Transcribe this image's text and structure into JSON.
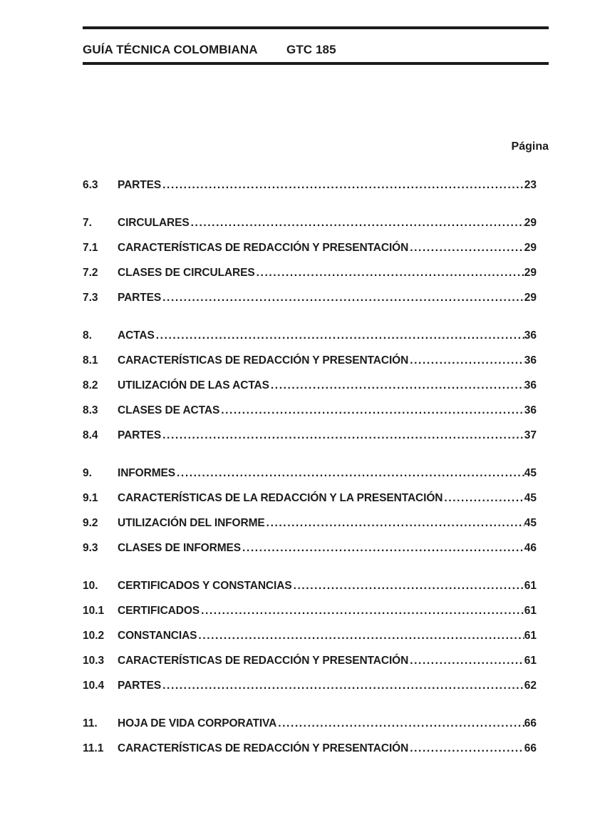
{
  "header": {
    "left_title": "GUÍA TÉCNICA COLOMBIANA",
    "doc_code": "GTC 185"
  },
  "page_label": "Página",
  "toc": {
    "leader_char": ".",
    "groups": [
      {
        "entries": [
          {
            "num": "6.3",
            "title": "PARTES",
            "page": "23"
          }
        ]
      },
      {
        "entries": [
          {
            "num": "7.",
            "title": "CIRCULARES",
            "page": "29"
          },
          {
            "num": "7.1",
            "title": "CARACTERÍSTICAS DE REDACCIÓN Y PRESENTACIÓN",
            "page": "29"
          },
          {
            "num": "7.2",
            "title": "CLASES DE CIRCULARES",
            "page": "29"
          },
          {
            "num": "7.3",
            "title": "PARTES",
            "page": "29"
          }
        ]
      },
      {
        "entries": [
          {
            "num": "8.",
            "title": "ACTAS",
            "page": "36"
          },
          {
            "num": "8.1",
            "title": "CARACTERÍSTICAS DE REDACCIÓN Y PRESENTACIÓN",
            "page": "36"
          },
          {
            "num": "8.2",
            "title": "UTILIZACIÓN DE LAS ACTAS",
            "page": "36"
          },
          {
            "num": "8.3",
            "title": "CLASES DE ACTAS",
            "page": "36"
          },
          {
            "num": "8.4",
            "title": "PARTES",
            "page": "37"
          }
        ]
      },
      {
        "entries": [
          {
            "num": "9.",
            "title": "INFORMES",
            "page": "45"
          },
          {
            "num": "9.1",
            "title": "CARACTERÍSTICAS DE LA REDACCIÓN Y LA PRESENTACIÓN",
            "page": "45"
          },
          {
            "num": "9.2",
            "title": "UTILIZACIÓN DEL INFORME",
            "page": "45"
          },
          {
            "num": "9.3",
            "title": "CLASES DE INFORMES",
            "page": "46"
          }
        ]
      },
      {
        "entries": [
          {
            "num": "10.",
            "title": "CERTIFICADOS Y CONSTANCIAS",
            "page": "61"
          },
          {
            "num": "10.1",
            "title": "CERTIFICADOS",
            "page": "61"
          },
          {
            "num": "10.2",
            "title": "CONSTANCIAS",
            "page": "61"
          },
          {
            "num": "10.3",
            "title": "CARACTERÍSTICAS DE REDACCIÓN Y PRESENTACIÓN",
            "page": "61"
          },
          {
            "num": "10.4",
            "title": "PARTES",
            "page": "62"
          }
        ]
      },
      {
        "entries": [
          {
            "num": "11.",
            "title": "HOJA DE VIDA CORPORATIVA",
            "page": "66"
          },
          {
            "num": "11.1",
            "title": "CARACTERÍSTICAS DE REDACCIÓN Y PRESENTACIÓN",
            "page": "66"
          }
        ]
      }
    ]
  },
  "colors": {
    "background": "#ffffff",
    "text": "#1c1c1c",
    "rule": "#1b1b1b"
  }
}
